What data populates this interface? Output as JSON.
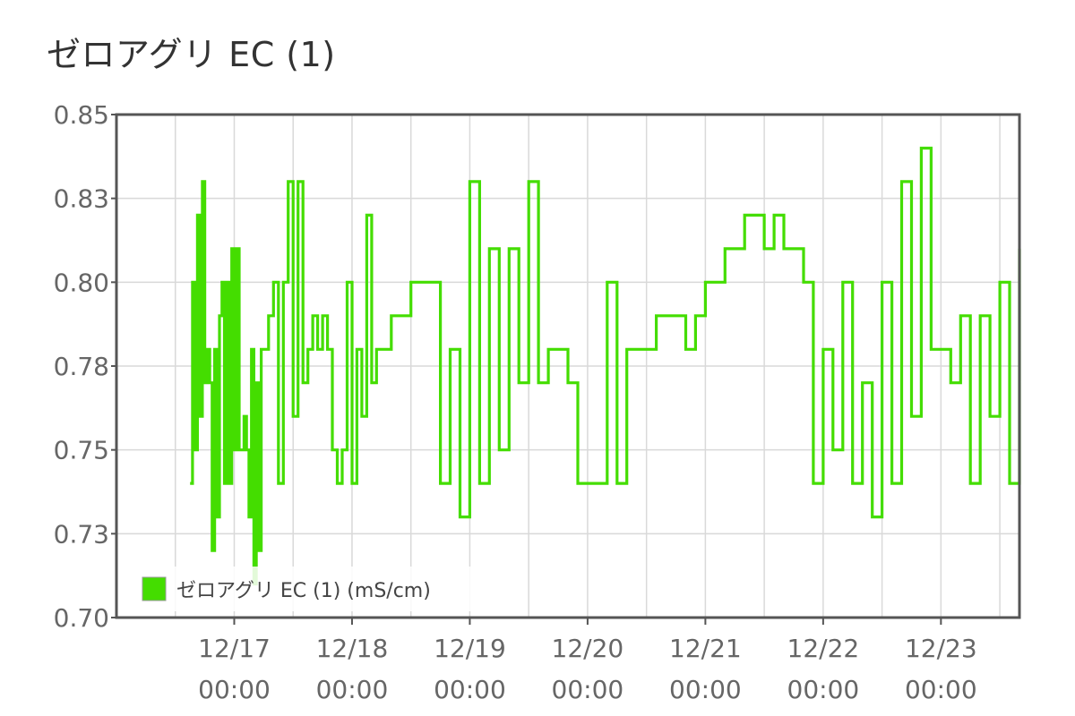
{
  "title": "ゼロアグリ EC (1)",
  "colors": {
    "series": "#44dd00",
    "grid": "#d9d9d9",
    "frame": "#555555",
    "text": "#666666"
  },
  "chart_data": {
    "type": "line",
    "title": "ゼロアグリ EC (1)",
    "xlabel": "",
    "ylabel": "",
    "ylim": [
      0.7,
      0.85
    ],
    "xlim": [
      "2012-12-16 00:00",
      "2012-12-23 16:00"
    ],
    "yticks": [
      "0.85",
      "0.83",
      "0.80",
      "0.78",
      "0.75",
      "0.73",
      "0.70"
    ],
    "yticks_values": [
      0.85,
      0.825,
      0.8,
      0.775,
      0.75,
      0.725,
      0.7
    ],
    "xticks": [
      {
        "date": "12/17",
        "time": "00:00"
      },
      {
        "date": "12/18",
        "time": "00:00"
      },
      {
        "date": "12/19",
        "time": "00:00"
      },
      {
        "date": "12/20",
        "time": "00:00"
      },
      {
        "date": "12/21",
        "time": "00:00"
      },
      {
        "date": "12/22",
        "time": "00:00"
      },
      {
        "date": "12/23",
        "time": "00:00"
      }
    ],
    "grid": true,
    "legend": {
      "position": "bottom-left",
      "entries": [
        "ゼロアグリ EC (1) (mS/cm)"
      ]
    },
    "series": [
      {
        "name": "ゼロアグリ EC (1) (mS/cm)",
        "x": [
          "12/16 15:00",
          "12/16 15:30",
          "12/16 16:00",
          "12/16 16:30",
          "12/16 17:00",
          "12/16 17:30",
          "12/16 18:00",
          "12/16 18:30",
          "12/16 19:00",
          "12/16 19:30",
          "12/16 20:00",
          "12/16 20:30",
          "12/16 21:00",
          "12/16 21:30",
          "12/16 22:00",
          "12/16 22:30",
          "12/16 23:00",
          "12/16 23:30",
          "12/17 00:00",
          "12/17 00:30",
          "12/17 01:00",
          "12/17 01:30",
          "12/17 02:00",
          "12/17 02:30",
          "12/17 03:00",
          "12/17 03:30",
          "12/17 04:00",
          "12/17 04:30",
          "12/17 05:00",
          "12/17 05:30",
          "12/17 06:00",
          "12/17 07:00",
          "12/17 08:00",
          "12/17 09:00",
          "12/17 10:00",
          "12/17 11:00",
          "12/17 12:00",
          "12/17 13:00",
          "12/17 14:00",
          "12/17 15:00",
          "12/17 16:00",
          "12/17 17:00",
          "12/17 18:00",
          "12/17 19:00",
          "12/17 20:00",
          "12/17 21:00",
          "12/17 22:00",
          "12/17 23:00",
          "12/18 00:00",
          "12/18 01:00",
          "12/18 02:00",
          "12/18 03:00",
          "12/18 04:00",
          "12/18 05:00",
          "12/18 06:00",
          "12/18 08:00",
          "12/18 10:00",
          "12/18 12:00",
          "12/18 14:00",
          "12/18 16:00",
          "12/18 18:00",
          "12/18 20:00",
          "12/18 22:00",
          "12/19 00:00",
          "12/19 02:00",
          "12/19 04:00",
          "12/19 06:00",
          "12/19 08:00",
          "12/19 10:00",
          "12/19 12:00",
          "12/19 14:00",
          "12/19 16:00",
          "12/19 18:00",
          "12/19 20:00",
          "12/19 22:00",
          "12/20 00:00",
          "12/20 02:00",
          "12/20 04:00",
          "12/20 06:00",
          "12/20 08:00",
          "12/20 10:00",
          "12/20 12:00",
          "12/20 14:00",
          "12/20 16:00",
          "12/20 18:00",
          "12/20 20:00",
          "12/20 22:00",
          "12/21 00:00",
          "12/21 02:00",
          "12/21 04:00",
          "12/21 06:00",
          "12/21 08:00",
          "12/21 10:00",
          "12/21 12:00",
          "12/21 14:00",
          "12/21 16:00",
          "12/21 18:00",
          "12/21 20:00",
          "12/21 22:00",
          "12/22 00:00",
          "12/22 02:00",
          "12/22 04:00",
          "12/22 06:00",
          "12/22 08:00",
          "12/22 10:00",
          "12/22 12:00",
          "12/22 14:00",
          "12/22 16:00",
          "12/22 18:00",
          "12/22 20:00",
          "12/22 22:00",
          "12/23 00:00",
          "12/23 02:00",
          "12/23 04:00",
          "12/23 06:00",
          "12/23 08:00",
          "12/23 10:00",
          "12/23 12:00",
          "12/23 14:00",
          "12/23 16:00"
        ],
        "values": [
          0.74,
          0.8,
          0.75,
          0.82,
          0.76,
          0.83,
          0.77,
          0.78,
          0.77,
          0.72,
          0.78,
          0.73,
          0.79,
          0.8,
          0.74,
          0.8,
          0.74,
          0.81,
          0.75,
          0.81,
          0.75,
          0.75,
          0.76,
          0.75,
          0.73,
          0.78,
          0.71,
          0.77,
          0.72,
          0.78,
          0.78,
          0.79,
          0.8,
          0.74,
          0.8,
          0.83,
          0.76,
          0.83,
          0.77,
          0.78,
          0.79,
          0.78,
          0.79,
          0.78,
          0.75,
          0.74,
          0.75,
          0.8,
          0.74,
          0.78,
          0.76,
          0.82,
          0.77,
          0.78,
          0.78,
          0.79,
          0.79,
          0.8,
          0.8,
          0.8,
          0.74,
          0.78,
          0.73,
          0.83,
          0.74,
          0.81,
          0.75,
          0.81,
          0.77,
          0.83,
          0.77,
          0.78,
          0.78,
          0.77,
          0.74,
          0.74,
          0.74,
          0.8,
          0.74,
          0.78,
          0.78,
          0.78,
          0.79,
          0.79,
          0.79,
          0.78,
          0.79,
          0.8,
          0.8,
          0.81,
          0.81,
          0.82,
          0.82,
          0.81,
          0.82,
          0.81,
          0.81,
          0.8,
          0.74,
          0.78,
          0.75,
          0.8,
          0.74,
          0.77,
          0.73,
          0.8,
          0.74,
          0.83,
          0.76,
          0.84,
          0.78,
          0.78,
          0.77,
          0.79,
          0.74,
          0.79,
          0.76,
          0.8,
          0.74,
          0.81
        ]
      }
    ]
  }
}
